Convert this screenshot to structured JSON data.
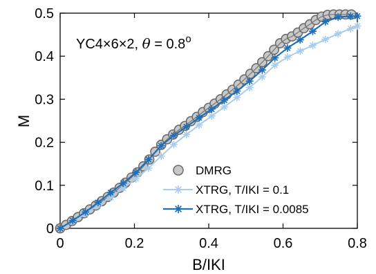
{
  "chart_data": {
    "type": "line",
    "xlabel": "B/IKI",
    "ylabel": "M",
    "xlim": [
      0,
      0.8
    ],
    "ylim": [
      0,
      0.5
    ],
    "xticks": [
      0,
      0.2,
      0.4,
      0.6,
      0.8
    ],
    "xtick_labels": [
      "0",
      "0.2",
      "0.4",
      "0.6",
      "0.8"
    ],
    "yticks": [
      0,
      0.1,
      0.2,
      0.3,
      0.4,
      0.5
    ],
    "ytick_labels": [
      "0",
      "0.1",
      "0.2",
      "0.3",
      "0.4",
      "0.5"
    ],
    "grid": false,
    "legend_position": "bottom-right",
    "annotation": {
      "prefix": "YC4",
      "x1": "6",
      "x2": "2, ",
      "theta": "θ",
      "eq": " = 0.8",
      "sup": "o"
    },
    "series": [
      {
        "name": "DMRG",
        "style": "markers",
        "marker": "circle",
        "color": "#9e9e9e",
        "edge_color": "#6b6b6b",
        "x": [
          0.0,
          0.016,
          0.032,
          0.048,
          0.064,
          0.08,
          0.096,
          0.112,
          0.128,
          0.144,
          0.16,
          0.176,
          0.192,
          0.208,
          0.224,
          0.24,
          0.256,
          0.272,
          0.288,
          0.304,
          0.32,
          0.336,
          0.352,
          0.368,
          0.384,
          0.4,
          0.416,
          0.432,
          0.448,
          0.464,
          0.48,
          0.496,
          0.512,
          0.528,
          0.544,
          0.56,
          0.576,
          0.592,
          0.608,
          0.624,
          0.64,
          0.656,
          0.672,
          0.688,
          0.704,
          0.72,
          0.736,
          0.752,
          0.768,
          0.784
        ],
        "y": [
          0.0,
          0.008,
          0.017,
          0.026,
          0.035,
          0.044,
          0.053,
          0.063,
          0.073,
          0.083,
          0.094,
          0.106,
          0.118,
          0.13,
          0.144,
          0.16,
          0.178,
          0.194,
          0.207,
          0.218,
          0.229,
          0.238,
          0.249,
          0.259,
          0.27,
          0.28,
          0.29,
          0.3,
          0.311,
          0.322,
          0.334,
          0.346,
          0.359,
          0.372,
          0.386,
          0.4,
          0.415,
          0.43,
          0.44,
          0.446,
          0.455,
          0.465,
          0.474,
          0.484,
          0.492,
          0.496,
          0.497,
          0.497,
          0.497,
          0.497
        ]
      },
      {
        "name": "XTRG, T/IKI = 0.1",
        "style": "line-star",
        "color": "#a9ccec",
        "x": [
          0.0,
          0.034,
          0.068,
          0.102,
          0.136,
          0.17,
          0.204,
          0.238,
          0.272,
          0.306,
          0.34,
          0.374,
          0.408,
          0.442,
          0.476,
          0.51,
          0.544,
          0.578,
          0.612,
          0.646,
          0.68,
          0.714,
          0.748,
          0.782,
          0.8
        ],
        "y": [
          0.0,
          0.016,
          0.034,
          0.053,
          0.072,
          0.093,
          0.115,
          0.14,
          0.168,
          0.195,
          0.218,
          0.24,
          0.261,
          0.282,
          0.304,
          0.327,
          0.352,
          0.379,
          0.398,
          0.412,
          0.425,
          0.439,
          0.452,
          0.464,
          0.47
        ]
      },
      {
        "name": "XTRG, T/IKI = 0.0085",
        "style": "line-star",
        "color": "#1f6fb8",
        "x": [
          0.0,
          0.034,
          0.068,
          0.102,
          0.136,
          0.17,
          0.204,
          0.238,
          0.272,
          0.306,
          0.34,
          0.374,
          0.408,
          0.442,
          0.476,
          0.51,
          0.544,
          0.578,
          0.612,
          0.646,
          0.68,
          0.714,
          0.748,
          0.782,
          0.8
        ],
        "y": [
          0.0,
          0.018,
          0.038,
          0.06,
          0.083,
          0.105,
          0.13,
          0.16,
          0.192,
          0.216,
          0.236,
          0.257,
          0.277,
          0.298,
          0.319,
          0.342,
          0.368,
          0.396,
          0.419,
          0.438,
          0.458,
          0.48,
          0.491,
          0.493,
          0.493
        ]
      }
    ]
  }
}
